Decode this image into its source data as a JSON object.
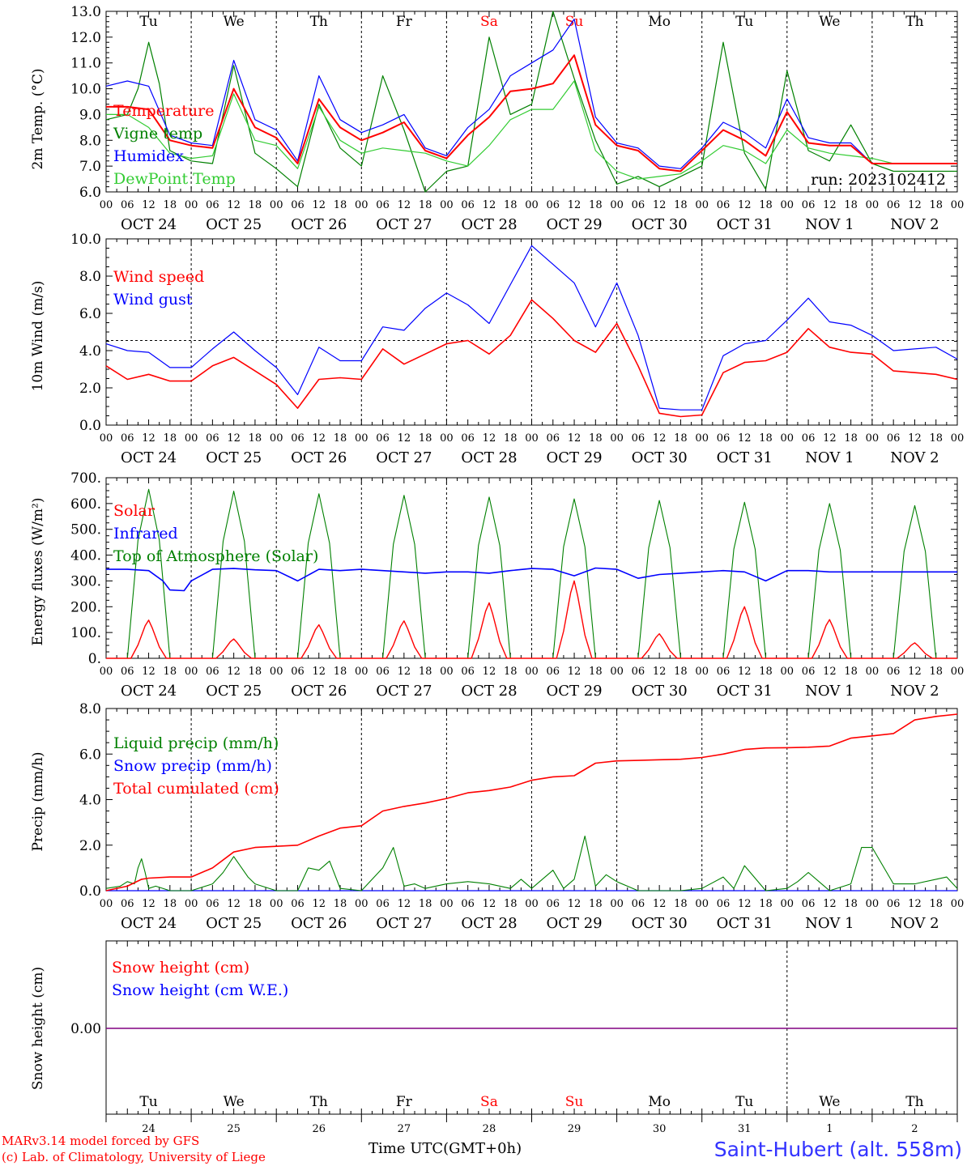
{
  "station": "Saint-Hubert (alt. 558m)",
  "credits": [
    "MARv3.14 model forced by GFS",
    "(c) Lab. of Climatology, University of Liege"
  ],
  "time_axis_label": "Time UTC(GMT+0h)",
  "run_label": "run: 2023102412",
  "x_hour_ticks": [
    "00",
    "06",
    "12",
    "18"
  ],
  "final_hour_tick": "00",
  "weekdays": [
    "Tu",
    "We",
    "Th",
    "Fr",
    "Sa",
    "Su",
    "Mo",
    "Tu",
    "We",
    "Th"
  ],
  "weekend_indices": [
    4,
    5
  ],
  "dates": [
    "OCT 24",
    "OCT 25",
    "OCT 26",
    "OCT 27",
    "OCT 28",
    "OCT 29",
    "OCT 30",
    "OCT 31",
    "NOV  1",
    "NOV  2"
  ],
  "day_numbers": [
    "24",
    "25",
    "26",
    "27",
    "28",
    "29",
    "30",
    "31",
    "1",
    "2"
  ],
  "colors": {
    "red": "#ff0000",
    "green": "#008000",
    "blue": "#0000ff",
    "lightgreen": "#33cc33",
    "purple": "#800080"
  },
  "chart_data": [
    {
      "type": "line",
      "ylabel": "2m Temp. (°C)",
      "ylim": [
        6.0,
        13.0
      ],
      "yticks": [
        "6.0",
        "7.0",
        "8.0",
        "9.0",
        "10.0",
        "11.0",
        "12.0",
        "13.0"
      ],
      "x_unit": "hours since OCT 24 00 UTC",
      "series": [
        {
          "name": "Temperature",
          "color": "red",
          "x": [
            0,
            6,
            12,
            18,
            24,
            30,
            36,
            42,
            48,
            54,
            60,
            66,
            72,
            78,
            84,
            90,
            96,
            102,
            108,
            114,
            120,
            126,
            132,
            138,
            144,
            150,
            156,
            162,
            168,
            174,
            180,
            186,
            192,
            198,
            204,
            210,
            216,
            222,
            228,
            234,
            240
          ],
          "y": [
            9.3,
            9.3,
            9.2,
            8.0,
            7.8,
            7.7,
            10.0,
            8.5,
            8.1,
            7.1,
            9.6,
            8.5,
            8.0,
            8.3,
            8.7,
            7.6,
            7.3,
            8.2,
            8.9,
            9.9,
            10.0,
            10.2,
            11.3,
            8.6,
            7.8,
            7.6,
            6.9,
            6.8,
            7.6,
            8.4,
            8.0,
            7.4,
            9.1,
            7.9,
            7.8,
            7.8,
            7.1,
            7.1,
            7.1,
            7.1,
            7.1
          ]
        },
        {
          "name": "Vigne temp",
          "color": "green",
          "x": [
            0,
            6,
            9,
            12,
            15,
            18,
            24,
            30,
            36,
            42,
            48,
            54,
            60,
            66,
            72,
            78,
            84,
            90,
            96,
            102,
            108,
            114,
            120,
            126,
            132,
            138,
            144,
            150,
            156,
            162,
            168,
            174,
            180,
            186,
            192,
            198,
            204,
            210,
            216,
            222,
            228,
            234,
            240
          ],
          "y": [
            8.8,
            9.0,
            10.0,
            11.8,
            10.2,
            7.6,
            7.2,
            7.1,
            10.9,
            7.5,
            6.9,
            6.2,
            9.4,
            7.7,
            7.0,
            10.5,
            8.4,
            6.0,
            6.8,
            7.0,
            12.0,
            9.0,
            9.4,
            13.0,
            10.4,
            8.0,
            6.3,
            6.6,
            6.2,
            6.6,
            7.0,
            11.8,
            7.5,
            6.1,
            10.7,
            7.6,
            7.2,
            8.6,
            7.1,
            6.8,
            6.8,
            6.8,
            6.8
          ]
        },
        {
          "name": "Humidex",
          "color": "blue",
          "x": [
            0,
            6,
            12,
            18,
            24,
            30,
            36,
            42,
            48,
            54,
            60,
            66,
            72,
            78,
            84,
            90,
            96,
            102,
            108,
            114,
            120,
            126,
            132,
            138,
            144,
            150,
            156,
            162,
            168,
            174,
            180,
            186,
            192,
            198,
            204,
            210,
            216,
            222,
            228,
            234,
            240
          ],
          "y": [
            10.1,
            10.3,
            10.1,
            8.2,
            7.9,
            7.8,
            11.1,
            8.8,
            8.4,
            7.2,
            10.5,
            8.8,
            8.3,
            8.6,
            9.0,
            7.7,
            7.4,
            8.5,
            9.2,
            10.5,
            11.0,
            11.5,
            12.7,
            8.9,
            7.9,
            7.7,
            7.0,
            6.9,
            7.7,
            8.7,
            8.3,
            7.7,
            9.6,
            8.1,
            7.9,
            7.9,
            7.1,
            7.1,
            7.1,
            7.1,
            7.1
          ]
        },
        {
          "name": "DewPoint Temp",
          "color": "lightgreen",
          "x": [
            0,
            6,
            12,
            18,
            24,
            30,
            36,
            42,
            48,
            54,
            60,
            66,
            72,
            78,
            84,
            90,
            96,
            102,
            108,
            114,
            120,
            126,
            132,
            138,
            144,
            150,
            156,
            162,
            168,
            174,
            180,
            186,
            192,
            198,
            204,
            210,
            216,
            222,
            228,
            234,
            240
          ],
          "y": [
            9.0,
            9.0,
            8.5,
            7.5,
            7.3,
            7.4,
            9.8,
            8.0,
            7.8,
            6.9,
            9.3,
            8.0,
            7.5,
            7.7,
            7.6,
            7.5,
            7.2,
            7.0,
            7.8,
            8.8,
            9.2,
            9.2,
            10.3,
            7.6,
            6.8,
            6.5,
            6.6,
            6.7,
            7.2,
            7.8,
            7.6,
            7.1,
            8.4,
            7.7,
            7.5,
            7.4,
            7.3,
            7.1,
            7.1,
            7.1,
            7.1
          ]
        }
      ]
    },
    {
      "type": "line",
      "ylabel": "10m Wind (m/s)",
      "ylim": [
        0.0,
        11.0
      ],
      "yticks": [
        "0.0",
        "2.0",
        "4.0",
        "6.0",
        "8.0",
        "10.0"
      ],
      "reference_line": 5.0,
      "x_unit": "hours since OCT 24 00 UTC",
      "series": [
        {
          "name": "Wind speed",
          "color": "red",
          "x": [
            0,
            6,
            12,
            18,
            24,
            30,
            36,
            42,
            48,
            54,
            60,
            66,
            72,
            78,
            84,
            90,
            96,
            102,
            108,
            114,
            120,
            126,
            132,
            138,
            144,
            150,
            156,
            162,
            168,
            174,
            180,
            186,
            192,
            198,
            204,
            210,
            216,
            222,
            228,
            234,
            240
          ],
          "y": [
            3.5,
            2.7,
            3.0,
            2.6,
            2.6,
            3.5,
            4.0,
            3.2,
            2.4,
            1.0,
            2.7,
            2.8,
            2.7,
            4.5,
            3.6,
            4.2,
            4.8,
            5.0,
            4.2,
            5.3,
            7.4,
            6.3,
            5.0,
            4.3,
            6.0,
            3.5,
            0.7,
            0.5,
            0.6,
            3.1,
            3.7,
            3.8,
            4.3,
            5.7,
            4.6,
            4.3,
            4.2,
            3.2,
            3.1,
            3.0,
            2.7
          ]
        },
        {
          "name": "Wind gust",
          "color": "blue",
          "x": [
            0,
            6,
            12,
            18,
            24,
            30,
            36,
            42,
            48,
            54,
            60,
            66,
            72,
            78,
            84,
            90,
            96,
            102,
            108,
            114,
            120,
            126,
            132,
            138,
            144,
            150,
            156,
            162,
            168,
            174,
            180,
            186,
            192,
            198,
            204,
            210,
            216,
            222,
            228,
            234,
            240
          ],
          "y": [
            4.8,
            4.4,
            4.3,
            3.4,
            3.4,
            4.5,
            5.5,
            4.4,
            3.4,
            1.8,
            4.6,
            3.8,
            3.8,
            5.8,
            5.6,
            6.9,
            7.8,
            7.1,
            6.0,
            8.3,
            10.6,
            9.5,
            8.4,
            5.8,
            8.4,
            5.3,
            1.0,
            0.9,
            0.9,
            4.1,
            4.8,
            5.0,
            6.2,
            7.5,
            6.1,
            5.9,
            5.3,
            4.4,
            4.5,
            4.6,
            3.9
          ]
        }
      ]
    },
    {
      "type": "line",
      "ylabel": "Energy fluxes (W/m²)",
      "ylim": [
        0,
        700
      ],
      "yticks": [
        "0.",
        "100.",
        "200.",
        "300.",
        "400.",
        "500.",
        "600.",
        "700."
      ],
      "x_unit": "hours since OCT 24 00 UTC",
      "series": [
        {
          "name": "Solar",
          "color": "red",
          "peaks": [
            148,
            75,
            130,
            145,
            215,
            300,
            95,
            200,
            150,
            60
          ]
        },
        {
          "name": "Infrared",
          "color": "blue",
          "x": [
            0,
            6,
            12,
            16,
            18,
            22,
            24,
            30,
            36,
            42,
            48,
            54,
            60,
            66,
            72,
            84,
            90,
            96,
            102,
            108,
            114,
            120,
            126,
            132,
            138,
            144,
            150,
            156,
            162,
            168,
            174,
            180,
            186,
            192,
            198,
            204,
            210,
            216,
            222,
            228,
            234,
            240
          ],
          "y": [
            345,
            345,
            340,
            300,
            265,
            262,
            300,
            345,
            348,
            343,
            340,
            300,
            345,
            340,
            345,
            335,
            330,
            335,
            335,
            330,
            340,
            348,
            345,
            320,
            350,
            345,
            310,
            325,
            330,
            335,
            340,
            335,
            300,
            340,
            340,
            335,
            335,
            335,
            335,
            335,
            335,
            335
          ]
        },
        {
          "name": "Top of Atmosphere (Solar)",
          "color": "green",
          "peaks": [
            655,
            648,
            638,
            632,
            625,
            618,
            612,
            605,
            600,
            592
          ]
        }
      ]
    },
    {
      "type": "line",
      "ylabel": "Precip (mm/h)",
      "ylim": [
        0.0,
        8.0
      ],
      "yticks": [
        "0.0",
        "2.0",
        "4.0",
        "6.0",
        "8.0"
      ],
      "x_unit": "hours since OCT 24 00 UTC",
      "series": [
        {
          "name": "Liquid precip (mm/h)",
          "color": "green",
          "x": [
            0,
            4,
            6,
            8,
            9,
            10,
            11,
            12,
            14,
            18,
            24,
            30,
            33,
            36,
            40,
            42,
            48,
            54,
            57,
            60,
            63,
            66,
            72,
            78,
            81,
            84,
            87,
            90,
            96,
            102,
            108,
            114,
            117,
            120,
            126,
            129,
            132,
            135,
            138,
            141,
            144,
            150,
            156,
            162,
            168,
            174,
            177,
            180,
            186,
            192,
            195,
            198,
            204,
            210,
            213,
            216,
            222,
            228,
            234,
            237,
            240
          ],
          "y": [
            0.1,
            0.2,
            0.4,
            0.3,
            1.0,
            1.4,
            0.8,
            0.1,
            0.2,
            0.0,
            0.0,
            0.3,
            0.8,
            1.5,
            0.6,
            0.3,
            0.0,
            0.0,
            1.0,
            0.9,
            1.3,
            0.1,
            0.0,
            1.0,
            1.9,
            0.2,
            0.3,
            0.1,
            0.3,
            0.4,
            0.3,
            0.1,
            0.5,
            0.1,
            0.9,
            0.1,
            0.5,
            2.4,
            0.2,
            0.7,
            0.4,
            0.0,
            0.0,
            0.0,
            0.1,
            0.6,
            0.1,
            1.1,
            0.0,
            0.1,
            0.4,
            0.8,
            0.0,
            0.3,
            1.9,
            1.9,
            0.3,
            0.3,
            0.5,
            0.6,
            0.1
          ]
        },
        {
          "name": "Snow precip (mm/h)",
          "color": "blue",
          "x": [
            0,
            240
          ],
          "y": [
            0.0,
            0.0
          ]
        },
        {
          "name": "Total cumulated (cm)",
          "color": "red",
          "x": [
            0,
            6,
            10,
            12,
            18,
            24,
            30,
            36,
            42,
            48,
            54,
            60,
            66,
            72,
            78,
            84,
            90,
            96,
            102,
            108,
            114,
            120,
            126,
            132,
            138,
            144,
            150,
            156,
            162,
            168,
            174,
            180,
            186,
            192,
            198,
            204,
            210,
            216,
            222,
            228,
            234,
            240
          ],
          "y": [
            0.0,
            0.2,
            0.5,
            0.55,
            0.6,
            0.6,
            1.0,
            1.7,
            1.9,
            1.95,
            2.0,
            2.4,
            2.75,
            2.85,
            3.5,
            3.7,
            3.85,
            4.05,
            4.3,
            4.4,
            4.55,
            4.85,
            5.0,
            5.05,
            5.6,
            5.7,
            5.72,
            5.75,
            5.77,
            5.85,
            6.0,
            6.2,
            6.27,
            6.28,
            6.3,
            6.35,
            6.7,
            6.8,
            6.9,
            7.5,
            7.65,
            7.75
          ]
        }
      ]
    },
    {
      "type": "line",
      "ylabel": "Snow height (cm)",
      "yticks": [
        "0.00"
      ],
      "x_unit": "hours since OCT 24 00 UTC",
      "series": [
        {
          "name": "Snow height (cm)",
          "color": "red",
          "x": [
            0,
            240
          ],
          "y": [
            0.0,
            0.0
          ]
        },
        {
          "name": "Snow height (cm W.E.)",
          "color": "blue",
          "x": [
            0,
            240
          ],
          "y": [
            0.0,
            0.0
          ]
        }
      ]
    }
  ]
}
